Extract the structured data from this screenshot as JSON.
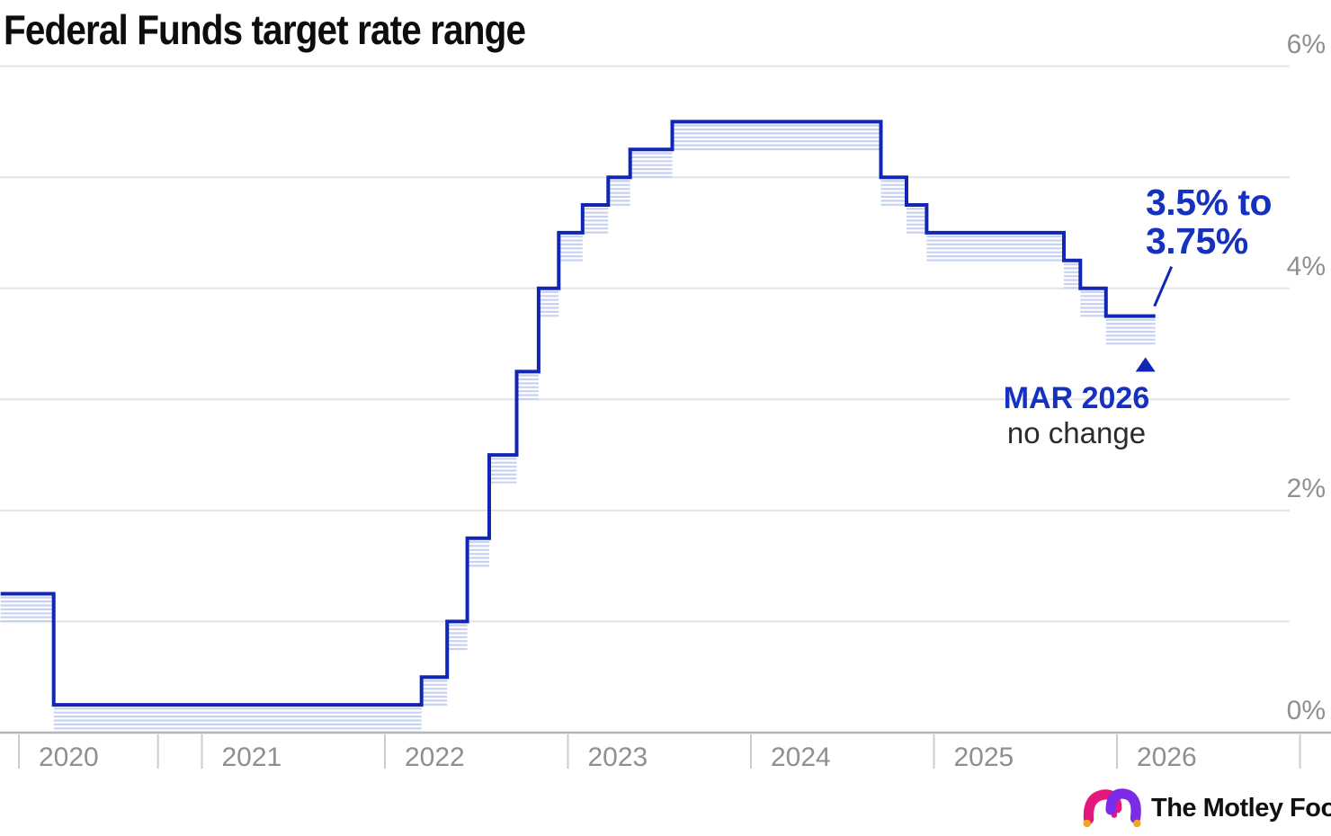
{
  "title": "Federal Funds target rate range",
  "colors": {
    "line": "#1226b4",
    "band": "#c8d2f0",
    "annotation_blue": "#1531c0",
    "grid": "#e4e4e4",
    "axis": "#b6b6b6",
    "tick": "#cccccc",
    "axis_text": "#8f8f8f",
    "logo_magenta": "#e5177e",
    "logo_purple": "#7c2ce8",
    "logo_orange": "#f2a51e"
  },
  "annotations": {
    "range_label": {
      "line1": "3.5% to",
      "line2": "3.75%"
    },
    "event_label": {
      "title": "MAR 2026",
      "subtitle": "no change"
    }
  },
  "footer": {
    "brand": "The Motley Fool",
    "suffix": "."
  },
  "chart_data": {
    "type": "step-range",
    "title": "Federal Funds target rate range",
    "unit": "percent",
    "y_axis": {
      "min": 0,
      "max": 6,
      "gridline_every": 1,
      "labeled_values": [
        6,
        4,
        2,
        0
      ],
      "tick_labels": [
        "6%",
        "4%",
        "2%",
        "0%"
      ]
    },
    "x_axis": {
      "tick_years": [
        2020,
        2021,
        2022,
        2023,
        2024,
        2025,
        2026,
        2027
      ],
      "labels": [
        "2020",
        "2021",
        "2022",
        "2023",
        "2024",
        "2025",
        "2026"
      ],
      "minor_ticks": [
        2020.76
      ]
    },
    "series_end": 2026.21,
    "steps": [
      {
        "t": 2019.9,
        "lower": 1.0,
        "upper": 1.25
      },
      {
        "t": 2020.19,
        "lower": 0.0,
        "upper": 0.25
      },
      {
        "t": 2022.2,
        "lower": 0.25,
        "upper": 0.5
      },
      {
        "t": 2022.34,
        "lower": 0.75,
        "upper": 1.0
      },
      {
        "t": 2022.45,
        "lower": 1.5,
        "upper": 1.75
      },
      {
        "t": 2022.57,
        "lower": 2.25,
        "upper": 2.5
      },
      {
        "t": 2022.72,
        "lower": 3.0,
        "upper": 3.25
      },
      {
        "t": 2022.84,
        "lower": 3.75,
        "upper": 4.0
      },
      {
        "t": 2022.95,
        "lower": 4.25,
        "upper": 4.5
      },
      {
        "t": 2023.08,
        "lower": 4.5,
        "upper": 4.75
      },
      {
        "t": 2023.22,
        "lower": 4.75,
        "upper": 5.0
      },
      {
        "t": 2023.34,
        "lower": 5.0,
        "upper": 5.25
      },
      {
        "t": 2023.57,
        "lower": 5.25,
        "upper": 5.5
      },
      {
        "t": 2024.71,
        "lower": 4.75,
        "upper": 5.0
      },
      {
        "t": 2024.85,
        "lower": 4.5,
        "upper": 4.75
      },
      {
        "t": 2024.96,
        "lower": 4.25,
        "upper": 4.5
      },
      {
        "t": 2025.71,
        "lower": 4.0,
        "upper": 4.25
      },
      {
        "t": 2025.8,
        "lower": 3.75,
        "upper": 4.0
      },
      {
        "t": 2025.94,
        "lower": 3.5,
        "upper": 3.75
      }
    ],
    "final_range": {
      "lower": 3.5,
      "upper": 3.75,
      "label": "3.5% to 3.75%",
      "as_of": "MAR 2026",
      "change": "no change"
    }
  }
}
